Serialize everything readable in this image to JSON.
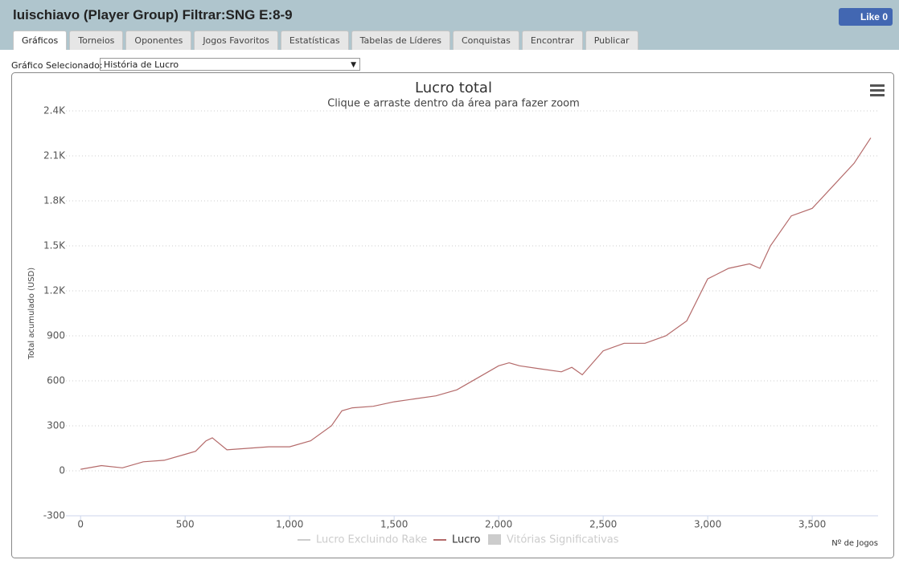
{
  "header": {
    "title": "luischiavo (Player Group) Filtrar:SNG E:8-9",
    "like": "Like 0"
  },
  "tabs": [
    "Gráficos",
    "Torneios",
    "Oponentes",
    "Jogos Favoritos",
    "Estatísticas",
    "Tabelas de Líderes",
    "Conquistas",
    "Encontrar",
    "Publicar"
  ],
  "selector": {
    "label": "Gráfico Selecionado:",
    "value": "História de Lucro"
  },
  "chart_data": {
    "type": "line",
    "title": "Lucro total",
    "subtitle": "Clique e arraste dentro da área para fazer zoom",
    "y_label": "Total acumulado (USD)",
    "x_label": "Nº de Jogos",
    "x": [
      0,
      100,
      200,
      300,
      400,
      500,
      550,
      600,
      630,
      700,
      800,
      900,
      1000,
      1100,
      1200,
      1250,
      1300,
      1400,
      1500,
      1600,
      1700,
      1800,
      1900,
      2000,
      2050,
      2100,
      2200,
      2300,
      2350,
      2400,
      2500,
      2600,
      2700,
      2800,
      2900,
      3000,
      3100,
      3200,
      3250,
      3300,
      3400,
      3500,
      3600,
      3700,
      3780
    ],
    "series": [
      {
        "name": "Lucro",
        "color": "#b46a6a",
        "values": [
          10,
          35,
          20,
          60,
          70,
          110,
          130,
          200,
          220,
          140,
          150,
          160,
          160,
          200,
          300,
          400,
          420,
          430,
          460,
          480,
          500,
          540,
          620,
          700,
          720,
          700,
          680,
          660,
          690,
          640,
          800,
          850,
          850,
          900,
          1000,
          1280,
          1350,
          1380,
          1350,
          1500,
          1700,
          1750,
          1900,
          2050,
          2220
        ]
      }
    ],
    "legend_hidden": [
      {
        "name": "Lucro Excluindo Rake",
        "marker": "line"
      },
      {
        "name": "Vitórias Significativas",
        "marker": "box"
      }
    ],
    "xlim": [
      -70,
      3815
    ],
    "ylim": [
      -300,
      2400
    ],
    "xticks": [
      0,
      500,
      {
        "value": 1000,
        "label": "1,000"
      },
      {
        "value": 1500,
        "label": "1,500"
      },
      {
        "value": 2000,
        "label": "2,000"
      },
      {
        "value": 2500,
        "label": "2,500"
      },
      {
        "value": 3000,
        "label": "3,000"
      },
      {
        "value": 3500,
        "label": "3,500"
      }
    ],
    "yticks": [
      -300,
      0,
      300,
      600,
      900,
      {
        "value": 1200,
        "label": "1.2K"
      },
      {
        "value": 1500,
        "label": "1.5K"
      },
      {
        "value": 1800,
        "label": "1.8K"
      },
      {
        "value": 2100,
        "label": "2.1K"
      },
      {
        "value": 2400,
        "label": "2.4K"
      }
    ],
    "grid": true
  }
}
